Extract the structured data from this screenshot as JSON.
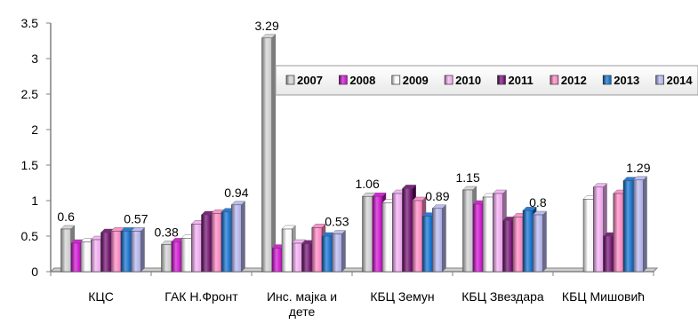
{
  "chart_data": {
    "type": "bar",
    "categories": [
      [
        "КЦС"
      ],
      [
        "ГАК Н.Фронт"
      ],
      [
        "Инс. мајка и",
        "дете"
      ],
      [
        "КБЦ Земун"
      ],
      [
        "КБЦ Звездара"
      ],
      [
        "КБЦ Мишовић"
      ]
    ],
    "series": [
      {
        "name": "2007",
        "color": "#cfcfcf",
        "values": [
          0.6,
          0.38,
          3.29,
          1.06,
          1.15,
          null
        ]
      },
      {
        "name": "2008",
        "color": "#cc00cc",
        "values": [
          0.4,
          0.42,
          0.33,
          1.06,
          0.95,
          null
        ]
      },
      {
        "name": "2009",
        "color": "#ffffff",
        "values": [
          0.42,
          0.47,
          0.6,
          0.97,
          1.05,
          1.02
        ]
      },
      {
        "name": "2010",
        "color": "#f2a8f2",
        "values": [
          0.45,
          0.67,
          0.4,
          1.1,
          1.1,
          1.19
        ]
      },
      {
        "name": "2011",
        "color": "#660066",
        "values": [
          0.55,
          0.8,
          0.39,
          1.17,
          0.72,
          0.5
        ]
      },
      {
        "name": "2012",
        "color": "#ff80c0",
        "values": [
          0.57,
          0.82,
          0.62,
          1.0,
          0.77,
          1.1
        ]
      },
      {
        "name": "2013",
        "color": "#0066cc",
        "values": [
          0.57,
          0.84,
          0.5,
          0.78,
          0.86,
          1.28
        ]
      },
      {
        "name": "2014",
        "color": "#b0b0ee",
        "values": [
          0.57,
          0.94,
          0.53,
          0.89,
          0.8,
          1.29
        ]
      }
    ],
    "data_labels": [
      {
        "series": 0,
        "category": 0,
        "text": "0.6"
      },
      {
        "series": 7,
        "category": 0,
        "text": "0.57"
      },
      {
        "series": 0,
        "category": 1,
        "text": "0.38"
      },
      {
        "series": 7,
        "category": 1,
        "text": "0.94"
      },
      {
        "series": 0,
        "category": 2,
        "text": "3.29"
      },
      {
        "series": 7,
        "category": 2,
        "text": "0.53"
      },
      {
        "series": 0,
        "category": 3,
        "text": "1.06"
      },
      {
        "series": 7,
        "category": 3,
        "text": "0.89"
      },
      {
        "series": 0,
        "category": 4,
        "text": "1.15"
      },
      {
        "series": 7,
        "category": 4,
        "text": "0.8"
      },
      {
        "series": 7,
        "category": 5,
        "text": "1.29"
      }
    ],
    "yticks": [
      "0",
      "0.5",
      "1",
      "1.5",
      "2",
      "2.5",
      "3",
      "3.5"
    ],
    "ylim": [
      0,
      3.5
    ],
    "grid": false,
    "legend_position": "top-right",
    "title": "",
    "xlabel": "",
    "ylabel": ""
  }
}
